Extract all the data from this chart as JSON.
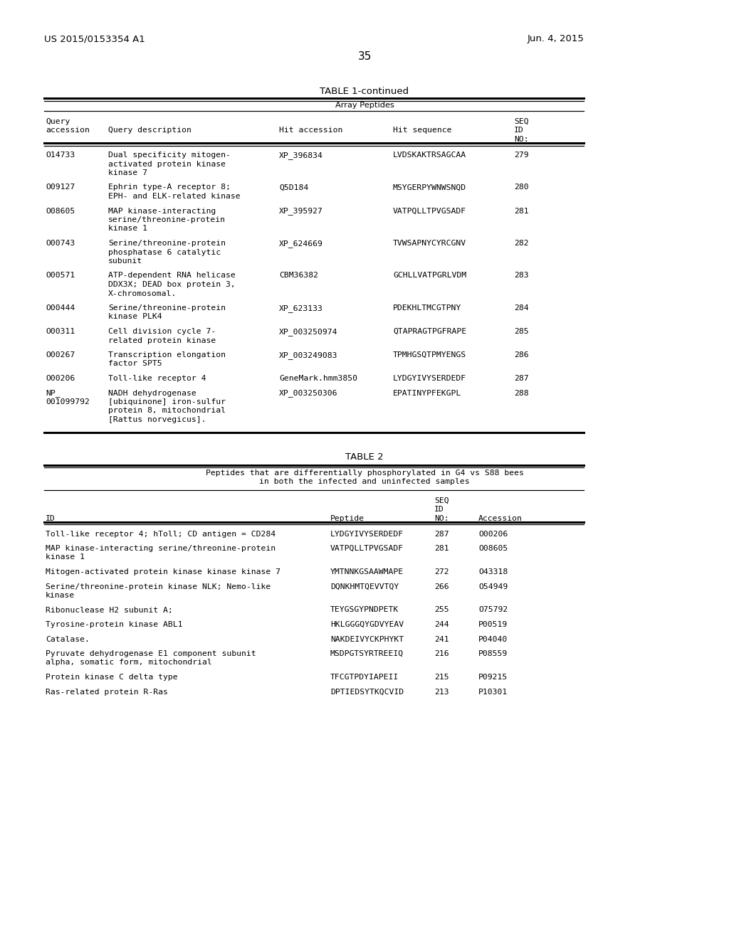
{
  "page_header_left": "US 2015/0153354 A1",
  "page_header_right": "Jun. 4, 2015",
  "page_number": "35",
  "table1_title": "TABLE 1-continued",
  "table1_subtitle": "Array Peptides",
  "table1_rows": [
    [
      "O14733",
      "Dual specificity mitogen-\nactivated protein kinase\nkinase 7",
      "XP_396834",
      "LVDSKAKTRSAGCAA",
      "279"
    ],
    [
      "O09127",
      "Ephrin type-A receptor 8;\nEPH- and ELK-related kinase",
      "Q5D184",
      "MSYGERPYWNWSNQD",
      "280"
    ],
    [
      "O08605",
      "MAP kinase-interacting\nserine/threonine-protein\nkinase 1",
      "XP_395927",
      "VATPQLLTPVGSADF",
      "281"
    ],
    [
      "O00743",
      "Serine/threonine-protein\nphosphatase 6 catalytic\nsubunit",
      "XP_624669",
      "TVWSAPNYCYRCGNV",
      "282"
    ],
    [
      "O00571",
      "ATP-dependent RNA helicase\nDDX3X; DEAD box protein 3,\nX-chromosomal.",
      "CBM36382",
      "GCHLLVATPGRLVDM",
      "283"
    ],
    [
      "O00444",
      "Serine/threonine-protein\nkinase PLK4",
      "XP_623133",
      "PDEKHLTMCGTPNY",
      "284"
    ],
    [
      "O00311",
      "Cell division cycle 7-\nrelated protein kinase",
      "XP_003250974",
      "QTAPRAGTPGFRAPE",
      "285"
    ],
    [
      "O00267",
      "Transcription elongation\nfactor SPT5",
      "XP_003249083",
      "TPMHGSQTPMYENGS",
      "286"
    ],
    [
      "O00206",
      "Toll-like receptor 4",
      "GeneMark.hmm3850",
      "LYDGYIVYSERDEDF",
      "287"
    ],
    [
      "NP_\n001099792",
      "NADH dehydrogenase\n[ubiquinone] iron-sulfur\nprotein 8, mitochondrial\n[Rattus norvegicus].",
      "XP_003250306",
      "EPATINYPFEKGPL",
      "288"
    ]
  ],
  "table2_title": "TABLE 2",
  "table2_subtitle_line1": "Peptides that are differentially phosphorylated in G4 vs S88 bees",
  "table2_subtitle_line2": "in both the infected and uninfected samples",
  "table2_rows": [
    [
      "Toll-like receptor 4; hToll; CD antigen = CD284",
      "LYDGYIVYSERDEDF",
      "287",
      "O00206"
    ],
    [
      "MAP kinase-interacting serine/threonine-protein\nkinase 1",
      "VATPQLLTPVGSADF",
      "281",
      "O08605"
    ],
    [
      "Mitogen-activated protein kinase kinase kinase 7",
      "YMTNNKGSAAWMAPE",
      "272",
      "O43318"
    ],
    [
      "Serine/threonine-protein kinase NLK; Nemo-like\nkinase",
      "DQNKHMTQEVVTQY",
      "266",
      "O54949"
    ],
    [
      "Ribonuclease H2 subunit A;",
      "TEYGSGYPNDPETK",
      "255",
      "O75792"
    ],
    [
      "Tyrosine-protein kinase ABL1",
      "HKLGGGQYGDVYEAV",
      "244",
      "P00519"
    ],
    [
      "Catalase.",
      "NAKDEIVYCKPHYKT",
      "241",
      "P04040"
    ],
    [
      "Pyruvate dehydrogenase E1 component subunit\nalpha, somatic form, mitochondrial",
      "MSDPGTSYRTREEIQ",
      "216",
      "P08559"
    ],
    [
      "Protein kinase C delta type",
      "TFCGTPDYIAPEII",
      "215",
      "P09215"
    ],
    [
      "Ras-related protein R-Ras",
      "DPTIEDSYTKQCVID",
      "213",
      "P10301"
    ]
  ],
  "bg_color": "#ffffff",
  "text_color": "#000000",
  "line_color": "#000000"
}
